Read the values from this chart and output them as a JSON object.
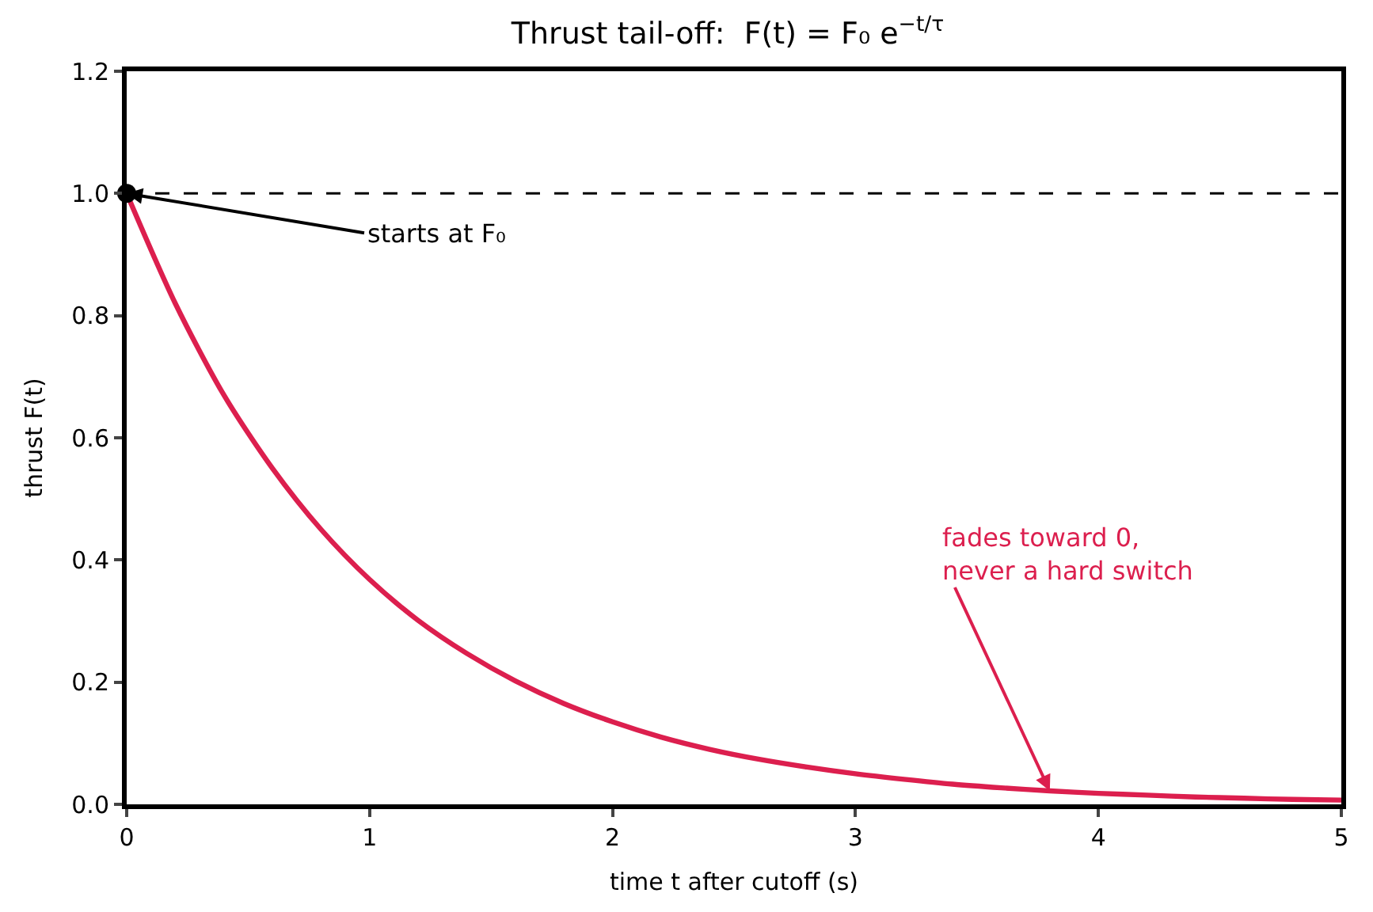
{
  "chart_data": {
    "type": "line",
    "title": "Thrust tail-off:  F(t) = F₀ e$^{−t/τ}$",
    "xlabel": "time t after cutoff (s)",
    "ylabel": "thrust F(t)",
    "series": [
      {
        "color": "#dc1f4e",
        "x": [
          0,
          0.2,
          0.4,
          0.6,
          0.8,
          1.0,
          1.2,
          1.4,
          1.6,
          1.8,
          2.0,
          2.2,
          2.4,
          2.6,
          2.8,
          3.0,
          3.2,
          3.4,
          3.6,
          3.8,
          4.0,
          4.2,
          4.4,
          4.6,
          4.8,
          5.0
        ],
        "values": [
          1.0,
          0.82,
          0.67,
          0.55,
          0.45,
          0.368,
          0.301,
          0.247,
          0.202,
          0.165,
          0.135,
          0.11,
          0.09,
          0.074,
          0.061,
          0.05,
          0.041,
          0.033,
          0.027,
          0.022,
          0.018,
          0.015,
          0.012,
          0.01,
          0.008,
          0.007
        ]
      },
      {
        "type": "scatter",
        "color": "#000000",
        "x": [
          0
        ],
        "values": [
          1.0
        ],
        "marker": "circle"
      }
    ],
    "ref_lines": [
      {
        "axis": "y",
        "value": 1.0,
        "color": "#000000",
        "line_style": "dashed"
      }
    ],
    "annotations": [
      {
        "text": "starts at F₀",
        "x": 0,
        "y": 1.0
      },
      {
        "text": "fades toward 0,\nnever a hard switch",
        "x": 3.8,
        "y": 0.022
      }
    ],
    "xlim": [
      0,
      5
    ],
    "xticks": [
      0,
      1,
      2,
      3,
      4,
      5
    ],
    "ylim": [
      0,
      1.2
    ],
    "yticks": [
      {
        "value": 0,
        "label": "0.0"
      },
      {
        "value": 0.2,
        "label": "0.2"
      },
      {
        "value": 0.4,
        "label": "0.4"
      },
      {
        "value": 0.6,
        "label": "0.6"
      },
      {
        "value": 0.8,
        "label": "0.8"
      },
      {
        "value": 1,
        "label": "1.0"
      },
      {
        "value": 1.2,
        "label": "1.2"
      }
    ],
    "grid": false,
    "legend": false,
    "marker": "none",
    "line_style": "solid"
  }
}
